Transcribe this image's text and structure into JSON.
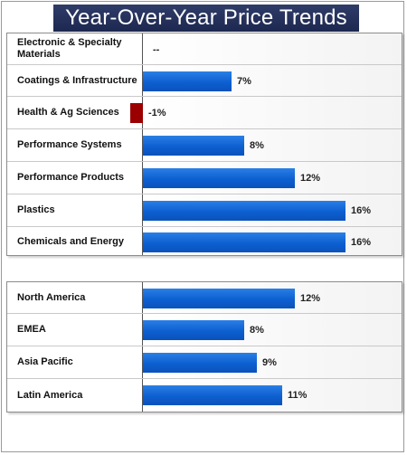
{
  "title": "Year-Over-Year Price Trends",
  "chart_data": [
    {
      "type": "bar",
      "orientation": "horizontal",
      "title": "",
      "categories": [
        "Electronic & Specialty Materials",
        "Coatings & Infrastructure",
        "Health & Ag Sciences",
        "Performance Systems",
        "Performance Products",
        "Plastics",
        "Chemicals and Energy"
      ],
      "values": [
        null,
        7,
        -1,
        8,
        12,
        16,
        16
      ],
      "value_labels": [
        "--",
        "7%",
        "-1%",
        "8%",
        "12%",
        "16%",
        "16%"
      ],
      "colors": {
        "positive": "#0d5fd0",
        "negative": "#9b0000"
      }
    },
    {
      "type": "bar",
      "orientation": "horizontal",
      "title": "",
      "categories": [
        "North America",
        "EMEA",
        "Asia Pacific",
        "Latin America"
      ],
      "values": [
        12,
        8,
        9,
        11
      ],
      "value_labels": [
        "12%",
        "8%",
        "9%",
        "11%"
      ],
      "colors": {
        "positive": "#0d5fd0",
        "negative": "#9b0000"
      }
    }
  ]
}
